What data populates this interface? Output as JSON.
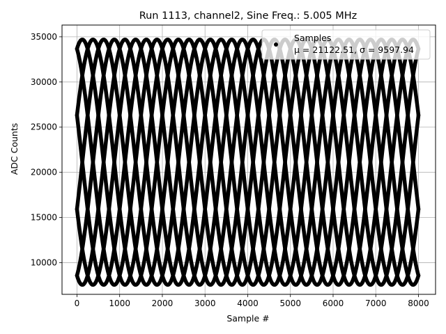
{
  "chart_data": {
    "type": "scatter",
    "title": "Run 1113, channel2, Sine Freq.: 5.005 MHz",
    "xlabel": "Sample #",
    "ylabel": "ADC Counts",
    "xlim": [
      -350,
      8400
    ],
    "ylim": [
      6500,
      36300
    ],
    "xticks": [
      0,
      1000,
      2000,
      3000,
      4000,
      5000,
      6000,
      7000,
      8000
    ],
    "yticks": [
      10000,
      15000,
      20000,
      25000,
      30000,
      35000
    ],
    "xtick_labels": [
      "0",
      "1000",
      "2000",
      "3000",
      "4000",
      "5000",
      "6000",
      "7000",
      "8000"
    ],
    "ytick_labels": [
      "10000",
      "15000",
      "20000",
      "25000",
      "30000",
      "35000"
    ],
    "grid": true,
    "legend": {
      "placement": "top-right",
      "entries": [
        {
          "label": "Samples",
          "stats": "μ = 21122.51, σ = 9597.94"
        }
      ]
    },
    "series": [
      {
        "name": "Samples",
        "color": "#000000",
        "model": "sine",
        "mean": 21122.51,
        "amplitude": 13575,
        "cycles_per_1000_samples": 0.5,
        "phases_deg": [
          -67.5,
          -22.5,
          22.5,
          67.5,
          112.5,
          157.5,
          202.5,
          247.5
        ],
        "x_range": [
          0,
          8000
        ]
      }
    ]
  }
}
